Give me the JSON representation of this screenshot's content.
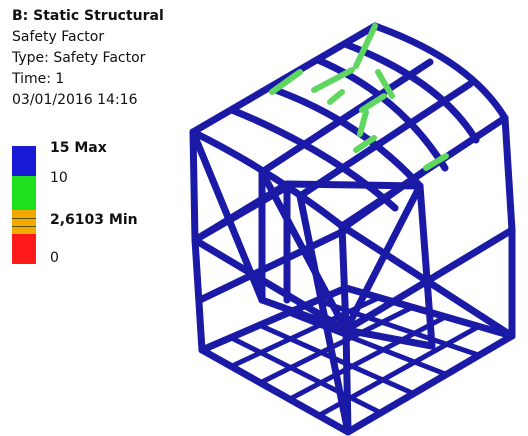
{
  "header": {
    "title": "B: Static Structural",
    "result_name": "Safety Factor",
    "type_line": "Type: Safety Factor",
    "time_line": "Time: 1",
    "timestamp": "03/01/2016 14:16"
  },
  "legend": {
    "max_label": "15 Max",
    "mid_label": "10",
    "min_label": "2,6103 Min",
    "zero_label": "0",
    "colors": {
      "max": "#1a1ad6",
      "mid": "#1fe01f",
      "low": "#f2a900",
      "low_dark": "#d98a00",
      "zero": "#ff1a1a"
    }
  },
  "model": {
    "beam_color": "#1a1aa6",
    "highlight_color": "#5fd65f"
  }
}
